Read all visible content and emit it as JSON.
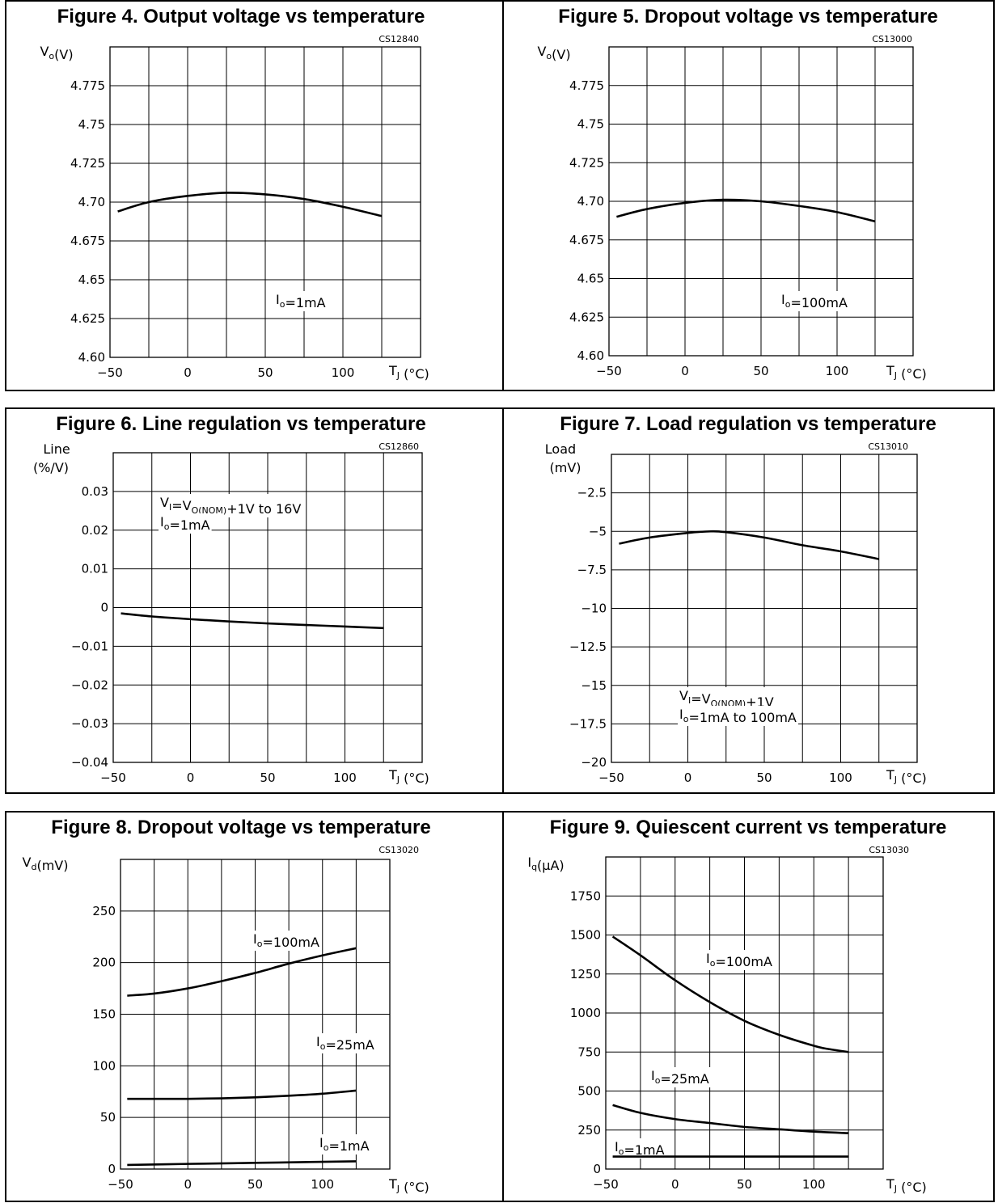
{
  "chart_data": [
    {
      "id": "fig4",
      "type": "line",
      "title": "Figure 4. Output voltage vs temperature",
      "code": "CS12840",
      "ylabel": [
        "Vₒ(V)"
      ],
      "xlabel": "Tⱼ (°C)",
      "xlim": [
        -50,
        150
      ],
      "ylim": [
        4.6,
        4.8
      ],
      "xticks": [
        "-50",
        "0",
        "50",
        "100"
      ],
      "yticks": [
        "4.60",
        "4.625",
        "4.65",
        "4.675",
        "4.70",
        "4.725",
        "4.75",
        "4.775"
      ],
      "grid": true,
      "annotations": [
        "Iₒ=1mA"
      ],
      "series": [
        {
          "x": [
            -45,
            -25,
            0,
            25,
            50,
            75,
            100,
            125
          ],
          "y": [
            4.694,
            4.7,
            4.704,
            4.706,
            4.705,
            4.702,
            4.697,
            4.691
          ]
        }
      ]
    },
    {
      "id": "fig5",
      "type": "line",
      "title": "Figure 5. Dropout voltage vs temperature",
      "code": "CS13000",
      "ylabel": [
        "Vₒ(V)"
      ],
      "xlabel": "Tⱼ (°C)",
      "xlim": [
        -50,
        150
      ],
      "ylim": [
        4.6,
        4.8
      ],
      "xticks": [
        "-50",
        "0",
        "50",
        "100"
      ],
      "yticks": [
        "4.60",
        "4.625",
        "4.65",
        "4.675",
        "4.70",
        "4.725",
        "4.75",
        "4.775"
      ],
      "grid": true,
      "annotations": [
        "Iₒ=100mA"
      ],
      "series": [
        {
          "x": [
            -45,
            -25,
            0,
            25,
            50,
            75,
            100,
            125
          ],
          "y": [
            4.69,
            4.695,
            4.699,
            4.701,
            4.7,
            4.697,
            4.693,
            4.687
          ]
        }
      ]
    },
    {
      "id": "fig6",
      "type": "line",
      "title": "Figure 6. Line regulation vs temperature",
      "code": "CS12860",
      "ylabel": [
        "Line",
        "(%/V)"
      ],
      "xlabel": "Tⱼ (°C)",
      "xlim": [
        -50,
        150
      ],
      "ylim": [
        -0.04,
        0.04
      ],
      "xticks": [
        "-50",
        "0",
        "50",
        "100"
      ],
      "yticks": [
        "-0.04",
        "-0.03",
        "-0.02",
        "-0.01",
        "0",
        "0.01",
        "0.02",
        "0.03"
      ],
      "grid": true,
      "annotations": [
        "Vᵢ=Vₒ(NOM)+1V  to  16V",
        "Iₒ=1mA"
      ],
      "series": [
        {
          "x": [
            -45,
            -25,
            0,
            25,
            50,
            75,
            100,
            125
          ],
          "y": [
            -0.0015,
            -0.0023,
            -0.003,
            -0.0036,
            -0.0041,
            -0.0045,
            -0.0049,
            -0.0053
          ]
        }
      ]
    },
    {
      "id": "fig7",
      "type": "line",
      "title": "Figure 7. Load regulation vs temperature",
      "code": "CS13010",
      "ylabel": [
        "Load",
        "(mV)"
      ],
      "xlabel": "Tⱼ (°C)",
      "xlim": [
        -50,
        150
      ],
      "ylim": [
        -20,
        0
      ],
      "xticks": [
        "-50",
        "0",
        "50",
        "100"
      ],
      "yticks": [
        "-20",
        "-17.5",
        "-15",
        "-12.5",
        "-10",
        "-7.5",
        "-5",
        "-2.5"
      ],
      "grid": true,
      "annotations": [
        "Vᵢ=Vₒ(NOM)+1V",
        "Iₒ=1mA  to  100mA"
      ],
      "series": [
        {
          "x": [
            -45,
            -25,
            0,
            15,
            25,
            50,
            75,
            100,
            125
          ],
          "y": [
            -5.8,
            -5.4,
            -5.1,
            -5.0,
            -5.05,
            -5.4,
            -5.9,
            -6.3,
            -6.8
          ]
        }
      ]
    },
    {
      "id": "fig8",
      "type": "line",
      "title": "Figure 8. Dropout voltage vs temperature",
      "code": "CS13020",
      "ylabel": [
        "Vₔ(mV)"
      ],
      "xlabel": "Tⱼ (°C)",
      "xlim": [
        -50,
        150
      ],
      "ylim": [
        0,
        300
      ],
      "xticks": [
        "-50",
        "0",
        "50",
        "100"
      ],
      "yticks": [
        "0",
        "50",
        "100",
        "150",
        "200",
        "250"
      ],
      "grid": true,
      "annotations": [
        "Iₒ=100mA",
        "Iₒ=25mA",
        "Iₒ=1mA"
      ],
      "series": [
        {
          "name": "Iₒ=100mA",
          "x": [
            -45,
            -25,
            0,
            25,
            50,
            75,
            100,
            125
          ],
          "y": [
            168,
            170,
            175,
            182,
            190,
            199,
            207,
            214
          ]
        },
        {
          "name": "Iₒ=25mA",
          "x": [
            -45,
            -25,
            0,
            25,
            50,
            75,
            100,
            125
          ],
          "y": [
            68,
            68,
            68,
            68.5,
            69.5,
            71,
            73,
            76
          ]
        },
        {
          "name": "Iₒ=1mA",
          "x": [
            -45,
            0,
            50,
            100,
            125
          ],
          "y": [
            4,
            5,
            6,
            7,
            7.5
          ]
        }
      ]
    },
    {
      "id": "fig9",
      "type": "line",
      "title": "Figure 9. Quiescent current vs temperature",
      "code": "CS13030",
      "ylabel": [
        "I_q(μA)"
      ],
      "xlabel": "Tⱼ (°C)",
      "xlim": [
        -50,
        150
      ],
      "ylim": [
        0,
        2000
      ],
      "xticks": [
        "-50",
        "0",
        "50",
        "100"
      ],
      "yticks": [
        "0",
        "250",
        "500",
        "750",
        "1000",
        "1250",
        "1500",
        "1750"
      ],
      "grid": true,
      "annotations": [
        "Iₒ=100mA",
        "Iₒ=25mA",
        "Iₒ=1mA"
      ],
      "series": [
        {
          "name": "Iₒ=100mA",
          "x": [
            -45,
            -25,
            0,
            25,
            50,
            75,
            100,
            110,
            125
          ],
          "y": [
            1490,
            1370,
            1210,
            1070,
            950,
            860,
            790,
            770,
            750
          ]
        },
        {
          "name": "Iₒ=25mA",
          "x": [
            -45,
            -25,
            0,
            25,
            50,
            75,
            100,
            125
          ],
          "y": [
            410,
            360,
            320,
            295,
            270,
            255,
            240,
            230
          ]
        },
        {
          "name": "Iₒ=1mA",
          "x": [
            -45,
            0,
            50,
            100,
            125
          ],
          "y": [
            80,
            80,
            80,
            80,
            80
          ]
        }
      ]
    }
  ]
}
